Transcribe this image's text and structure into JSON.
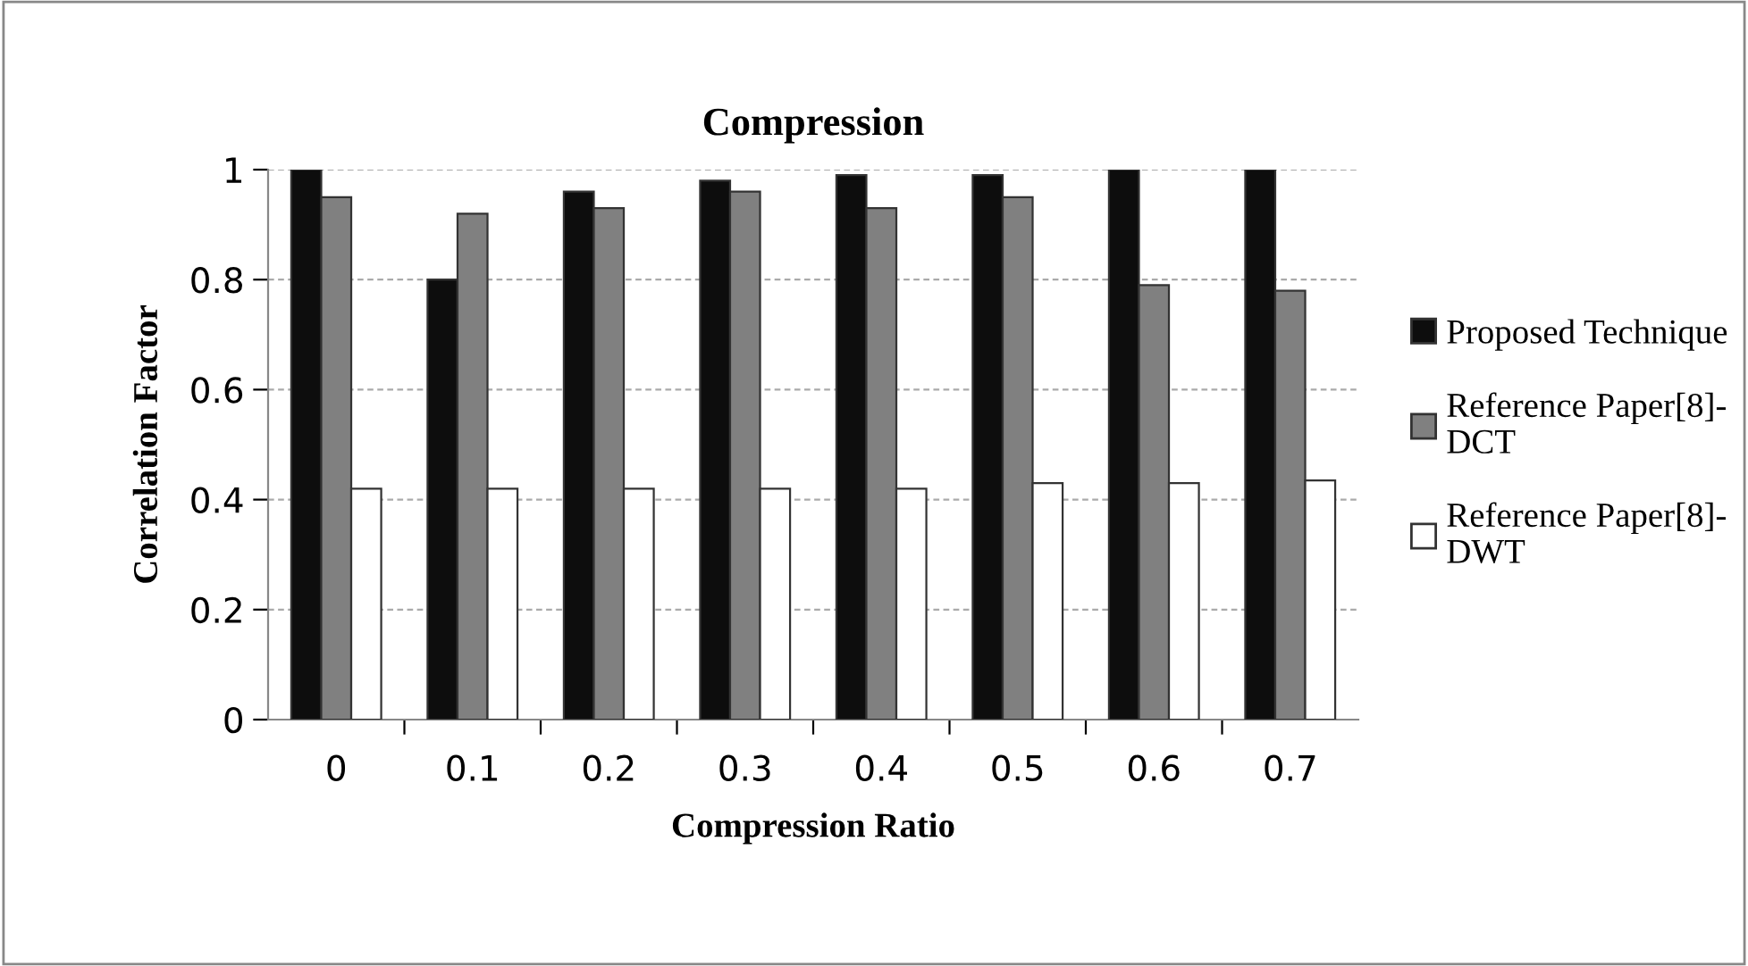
{
  "chart_data": {
    "type": "bar",
    "title": "Compression",
    "xlabel": "Compression Ratio",
    "ylabel": "Correlation Factor",
    "categories": [
      "0",
      "0.1",
      "0.2",
      "0.3",
      "0.4",
      "0.5",
      "0.6",
      "0.7"
    ],
    "series": [
      {
        "name": "Proposed Technique",
        "color": "#0d0d0d",
        "values": [
          1.0,
          0.8,
          0.96,
          0.98,
          0.99,
          0.99,
          1.0,
          1.0
        ]
      },
      {
        "name": "Reference Paper[8]-\nDCT",
        "color": "#808080",
        "values": [
          0.95,
          0.92,
          0.93,
          0.96,
          0.93,
          0.95,
          0.79,
          0.78
        ]
      },
      {
        "name": "Reference Paper[8]-\nDWT",
        "color": "#ffffff",
        "values": [
          0.42,
          0.42,
          0.42,
          0.42,
          0.42,
          0.43,
          0.43,
          0.435
        ]
      }
    ],
    "ylim": [
      0,
      1
    ],
    "yticks": [
      0,
      0.2,
      0.4,
      0.6,
      0.8,
      1
    ],
    "grid": "y",
    "legend": "right"
  }
}
